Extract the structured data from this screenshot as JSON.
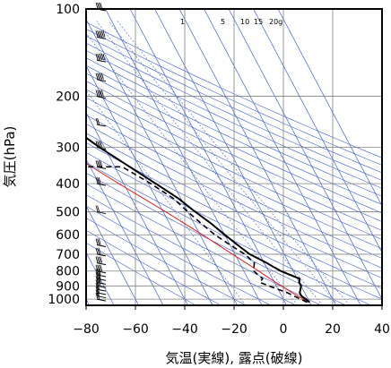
{
  "chart_data": {
    "type": "skew-t-log-p",
    "xlabel": "気温(実線), 露点(破線)",
    "ylabel": "気圧(hPa)",
    "x_ticks": [
      -80,
      -60,
      -40,
      -20,
      0,
      20,
      40
    ],
    "y_ticks": [
      100,
      200,
      300,
      400,
      500,
      600,
      700,
      800,
      900,
      1000
    ],
    "xlim": [
      -80,
      40
    ],
    "ylim": [
      1050,
      100
    ],
    "mixing_ratio_labels": [
      "1",
      "5",
      "10",
      "15",
      "20g"
    ],
    "colors": {
      "isotherm": "#4060d0",
      "dry_adiabat": "#4060d0",
      "mixing_ratio": "#4060d0",
      "parcel_curve": "#e02020",
      "temperature": "#000000",
      "dewpoint": "#000000",
      "grid": "#808080"
    },
    "temperature": [
      {
        "p": 1025,
        "t": 10.0
      },
      {
        "p": 1000,
        "t": 9.0
      },
      {
        "p": 975,
        "t": 8.0
      },
      {
        "p": 950,
        "t": 8.0
      },
      {
        "p": 925,
        "t": 9.0
      },
      {
        "p": 900,
        "t": 10.0
      },
      {
        "p": 875,
        "t": 10.0
      },
      {
        "p": 850,
        "t": 11.0
      },
      {
        "p": 825,
        "t": 8.0
      },
      {
        "p": 800,
        "t": 5.0
      },
      {
        "p": 775,
        "t": 3.0
      },
      {
        "p": 750,
        "t": 1.0
      },
      {
        "p": 700,
        "t": -4.0
      },
      {
        "p": 650,
        "t": -7.0
      },
      {
        "p": 600,
        "t": -10.0
      },
      {
        "p": 550,
        "t": -13.0
      },
      {
        "p": 500,
        "t": -17.0
      },
      {
        "p": 450,
        "t": -21.0
      },
      {
        "p": 400,
        "t": -27.0
      },
      {
        "p": 350,
        "t": -34.0
      },
      {
        "p": 300,
        "t": -42.0
      },
      {
        "p": 250,
        "t": -50.0
      },
      {
        "p": 200,
        "t": -57.0
      },
      {
        "p": 175,
        "t": -60.0
      },
      {
        "p": 150,
        "t": -62.0
      },
      {
        "p": 125,
        "t": -63.0
      },
      {
        "p": 100,
        "t": -62.0
      }
    ],
    "dewpoint": [
      {
        "p": 1025,
        "t": 9.0
      },
      {
        "p": 1000,
        "t": 7.0
      },
      {
        "p": 975,
        "t": 5.0
      },
      {
        "p": 950,
        "t": 3.0
      },
      {
        "p": 925,
        "t": 0.0
      },
      {
        "p": 900,
        "t": -3.0
      },
      {
        "p": 875,
        "t": -6.0
      },
      {
        "p": 850,
        "t": -4.0
      },
      {
        "p": 825,
        "t": -5.0
      },
      {
        "p": 800,
        "t": -6.0
      },
      {
        "p": 750,
        "t": -4.0
      },
      {
        "p": 700,
        "t": -6.0
      },
      {
        "p": 650,
        "t": -10.0
      },
      {
        "p": 600,
        "t": -14.0
      },
      {
        "p": 550,
        "t": -17.0
      },
      {
        "p": 500,
        "t": -20.0
      },
      {
        "p": 450,
        "t": -23.0
      },
      {
        "p": 400,
        "t": -29.0
      },
      {
        "p": 350,
        "t": -37.0
      },
      {
        "p": 350,
        "t": -78.0
      }
    ],
    "parcel": [
      {
        "p": 1025,
        "t": 10.0
      },
      {
        "p": 1000,
        "t": 8.0
      },
      {
        "p": 950,
        "t": 5.0
      },
      {
        "p": 900,
        "t": 2.0
      },
      {
        "p": 850,
        "t": -1.0
      },
      {
        "p": 800,
        "t": -4.0
      },
      {
        "p": 700,
        "t": -11.0
      },
      {
        "p": 600,
        "t": -19.0
      },
      {
        "p": 500,
        "t": -29.0
      },
      {
        "p": 400,
        "t": -42.0
      },
      {
        "p": 300,
        "t": -58.0
      },
      {
        "p": 250,
        "t": -68.0
      },
      {
        "p": 200,
        "t": -80.0
      }
    ],
    "wind_barbs": [
      {
        "p": 1000,
        "speed": 10
      },
      {
        "p": 975,
        "speed": 10
      },
      {
        "p": 950,
        "speed": 10
      },
      {
        "p": 925,
        "speed": 10
      },
      {
        "p": 900,
        "speed": 15
      },
      {
        "p": 875,
        "speed": 15
      },
      {
        "p": 850,
        "speed": 15
      },
      {
        "p": 825,
        "speed": 15
      },
      {
        "p": 800,
        "speed": 20
      },
      {
        "p": 750,
        "speed": 20
      },
      {
        "p": 700,
        "speed": 15
      },
      {
        "p": 650,
        "speed": 15
      },
      {
        "p": 500,
        "speed": 10
      },
      {
        "p": 400,
        "speed": 15
      },
      {
        "p": 350,
        "speed": 20
      },
      {
        "p": 300,
        "speed": 20
      },
      {
        "p": 250,
        "speed": 10
      },
      {
        "p": 200,
        "speed": 25
      },
      {
        "p": 175,
        "speed": 25
      },
      {
        "p": 150,
        "speed": 30
      },
      {
        "p": 125,
        "speed": 30
      },
      {
        "p": 100,
        "speed": 20
      }
    ]
  }
}
